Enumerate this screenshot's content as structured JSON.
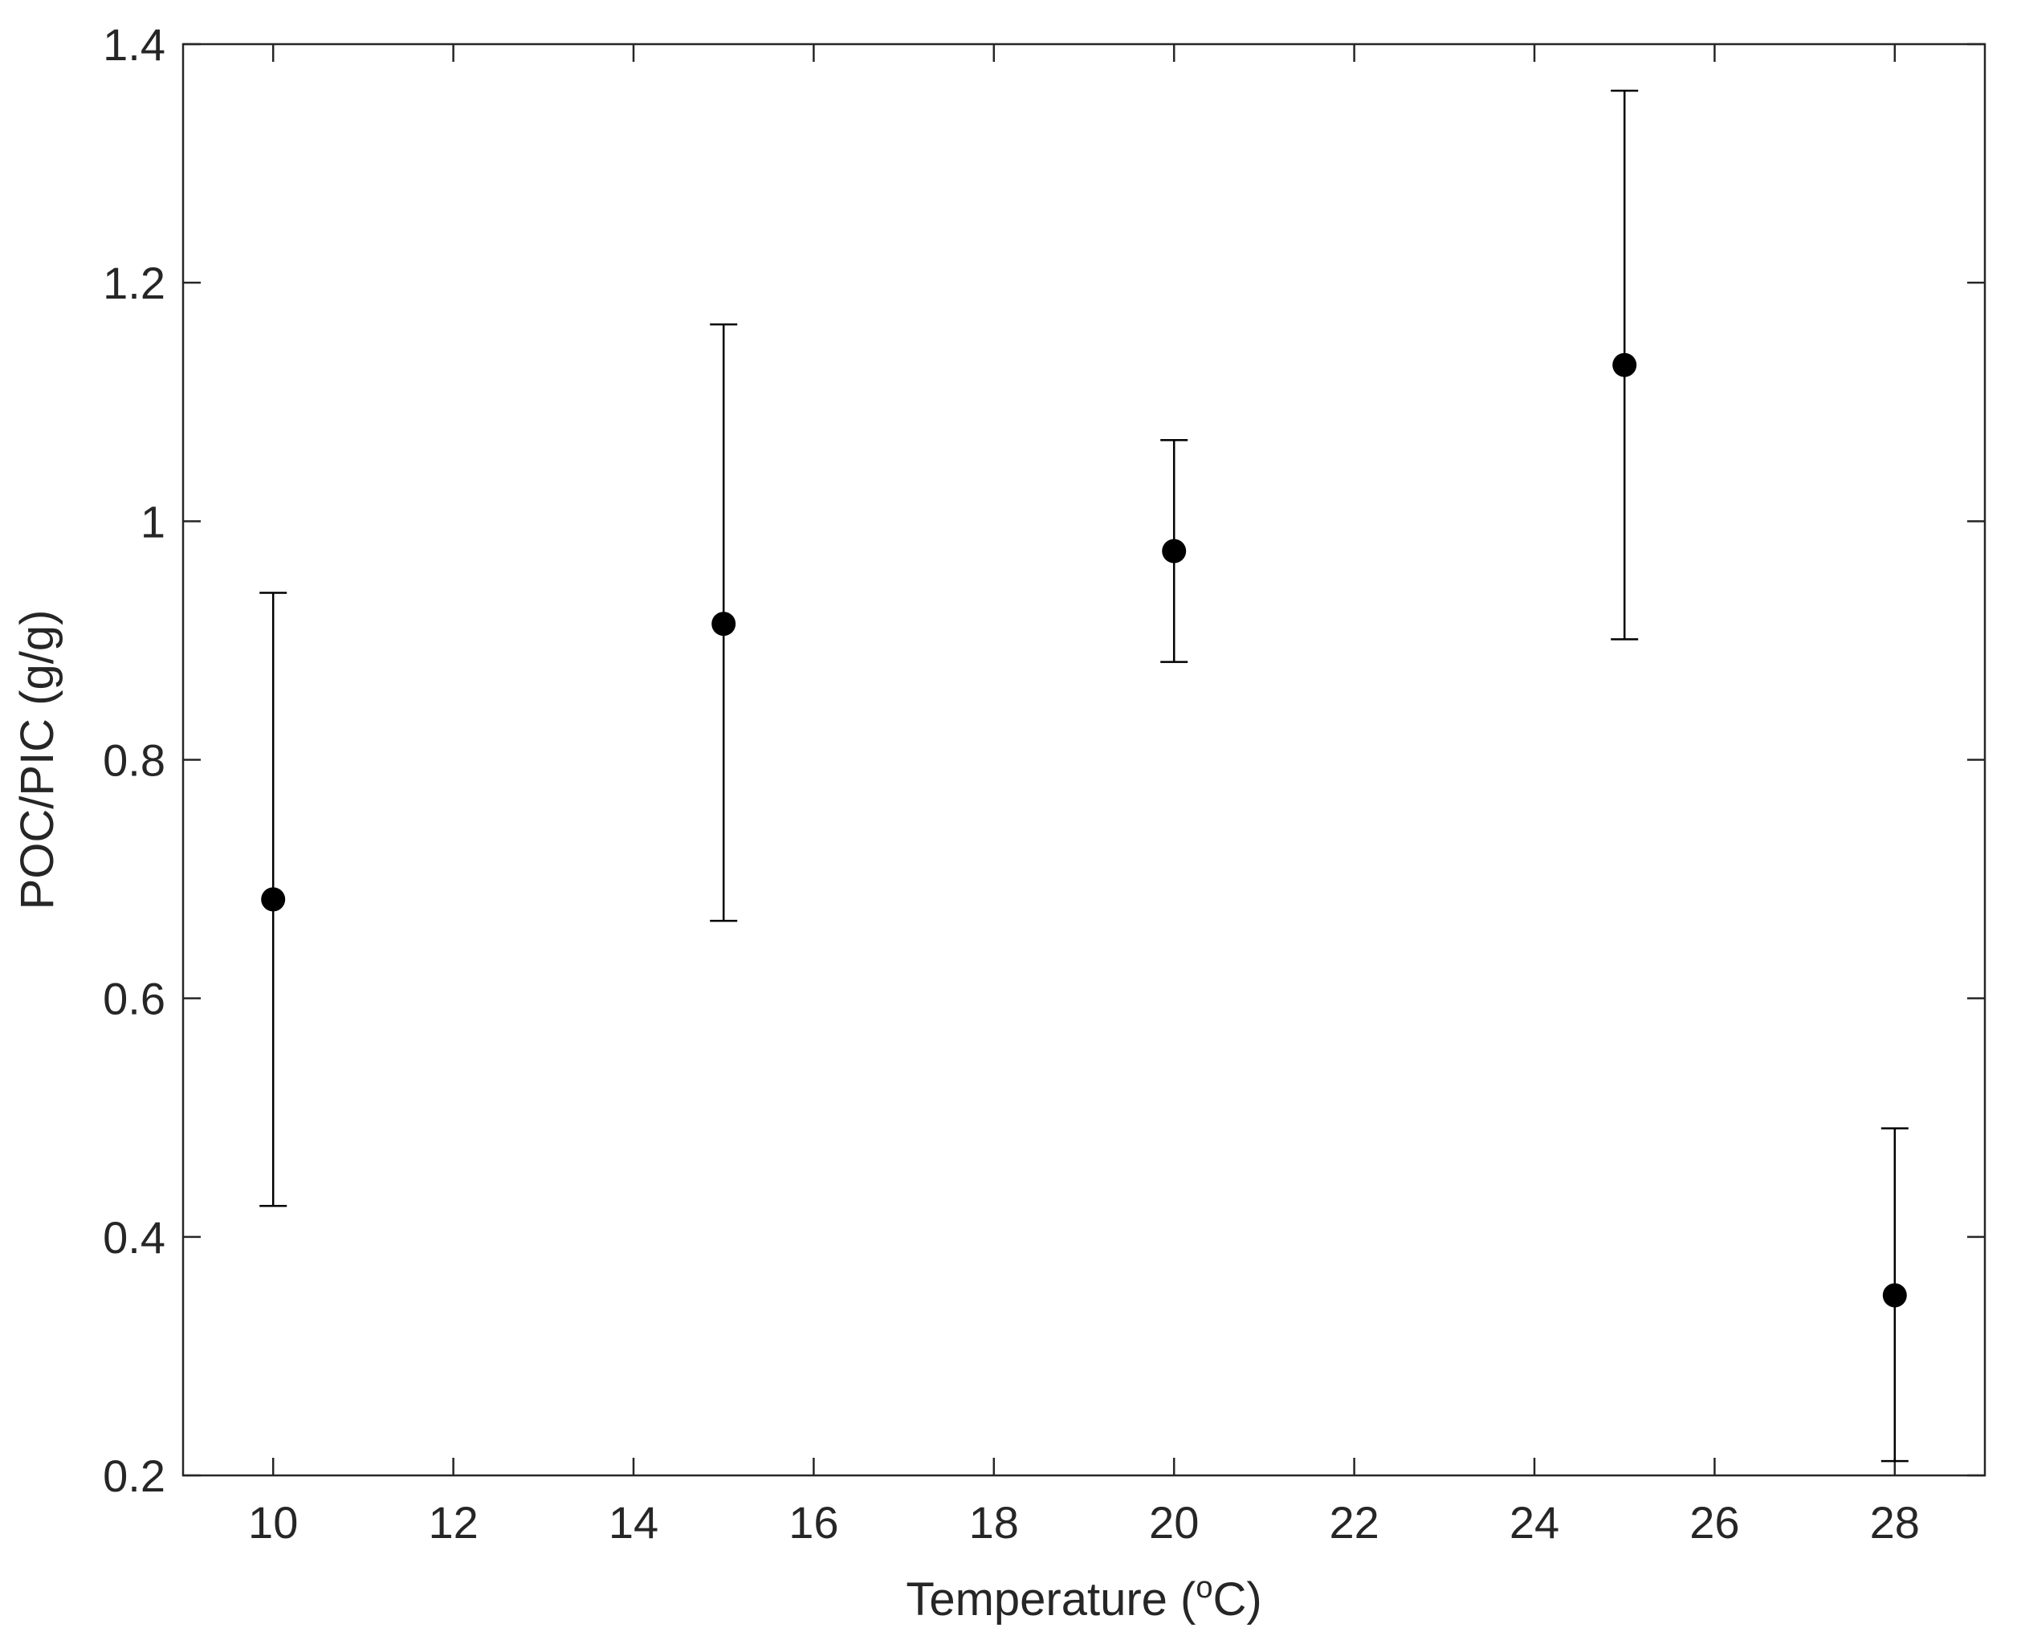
{
  "chart_data": {
    "type": "scatter",
    "title": "",
    "xlabel_prefix": "Temperature (",
    "xlabel_sup": "o",
    "xlabel_suffix": "C)",
    "ylabel": "POC/PIC (g/g)",
    "xlim": [
      9,
      29
    ],
    "ylim": [
      0.2,
      1.4
    ],
    "grid": false,
    "x_ticks": [
      "10",
      "12",
      "14",
      "16",
      "18",
      "20",
      "22",
      "24",
      "26",
      "28"
    ],
    "y_ticks": [
      "0.2",
      "0.4",
      "0.6",
      "0.8",
      "1",
      "1.2",
      "1.4"
    ],
    "points": [
      {
        "x": 10,
        "y": 0.683,
        "err_low": 0.426,
        "err_high": 0.94
      },
      {
        "x": 15,
        "y": 0.914,
        "err_low": 0.665,
        "err_high": 1.165
      },
      {
        "x": 20,
        "y": 0.975,
        "err_low": 0.882,
        "err_high": 1.068
      },
      {
        "x": 25,
        "y": 1.131,
        "err_low": 0.901,
        "err_high": 1.361
      },
      {
        "x": 28,
        "y": 0.351,
        "err_low": 0.212,
        "err_high": 0.491
      }
    ],
    "marker_color": "#000000",
    "axis_color": "#262626"
  }
}
